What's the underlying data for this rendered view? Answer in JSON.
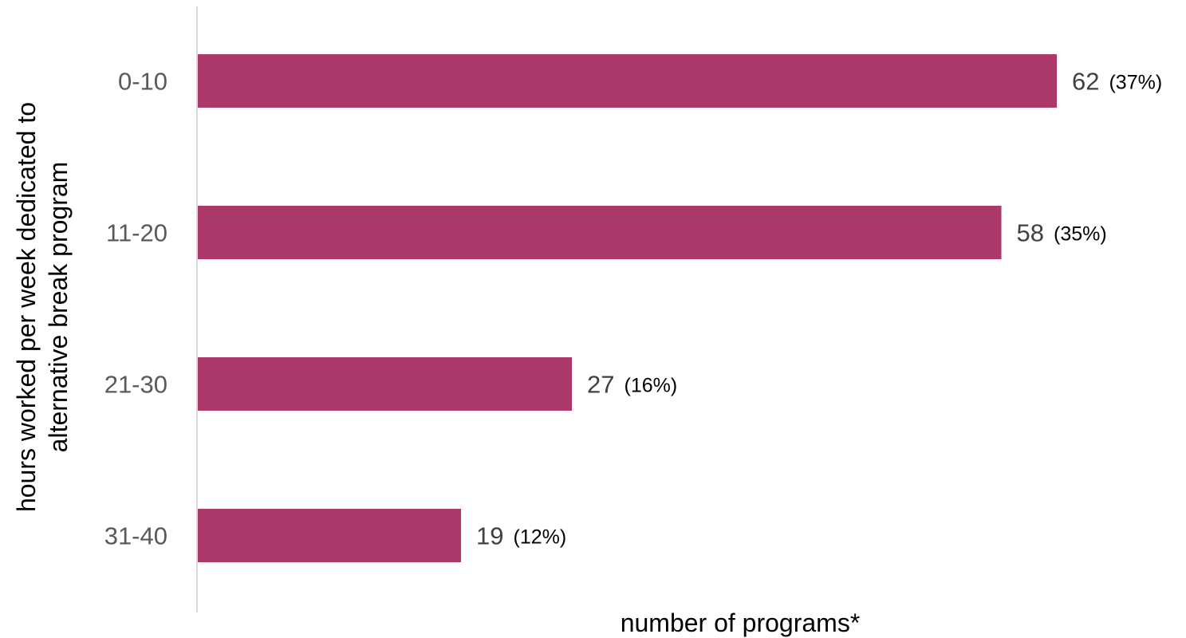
{
  "chart_data": {
    "type": "bar",
    "orientation": "horizontal",
    "categories": [
      "0-10",
      "11-20",
      "21-30",
      "31-40"
    ],
    "values": [
      62,
      58,
      27,
      19
    ],
    "percent_labels": [
      "(37%)",
      "(35%)",
      "(16%)",
      "(12%)"
    ],
    "xlabel": "number of programs*",
    "ylabel_lines": [
      "hours worked per week dedicated to",
      "alternative break program"
    ],
    "xlim": [
      0,
      62
    ],
    "grid": false,
    "legend": "none",
    "bar_color": "#AD386C",
    "axis_color": "#D9D9D9"
  }
}
